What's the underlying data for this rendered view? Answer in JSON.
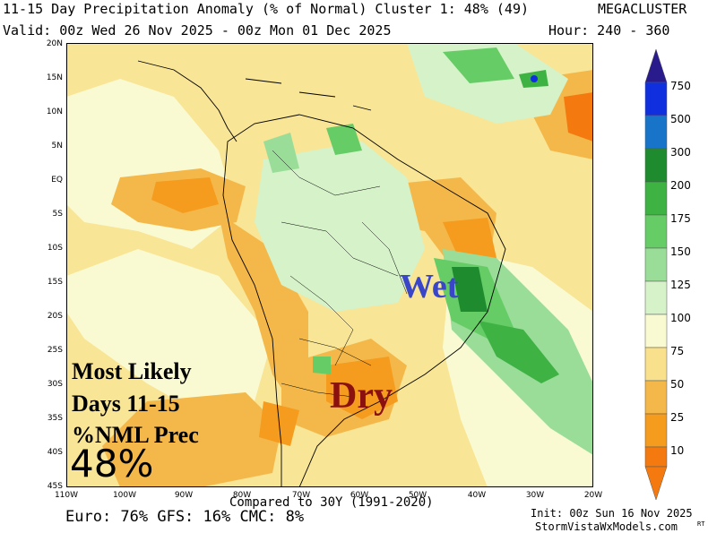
{
  "header": {
    "title": "11-15 Day Precipitation Anomaly (% of Normal) Cluster 1: 48% (49)",
    "brand": "MEGACLUSTER",
    "valid": "Valid: 00z Wed 26 Nov 2025 - 00z Mon 01 Dec 2025",
    "hour": "Hour: 240 - 360"
  },
  "axes": {
    "lat": [
      "20N",
      "15N",
      "10N",
      "5N",
      "EQ",
      "5S",
      "10S",
      "15S",
      "20S",
      "25S",
      "30S",
      "35S",
      "40S",
      "45S"
    ],
    "lon": [
      "110W",
      "100W",
      "90W",
      "80W",
      "70W",
      "60W",
      "50W",
      "40W",
      "30W",
      "20W"
    ]
  },
  "colorbar": {
    "labels": [
      "750",
      "500",
      "300",
      "200",
      "175",
      "150",
      "125",
      "100",
      "75",
      "50",
      "25",
      "10"
    ],
    "colors": [
      "#2a1b8c",
      "#1030e0",
      "#1874c8",
      "#1e8c2e",
      "#3fb244",
      "#66cc66",
      "#99dd99",
      "#d6f2c8",
      "#fafad2",
      "#f8e08c",
      "#f4b84a",
      "#f59b1e",
      "#f47a10"
    ]
  },
  "labels": {
    "wet": "Wet",
    "dry": "Dry",
    "likely_1": "Most Likely",
    "likely_2": "Days 11-15",
    "likely_3": "%NML Prec",
    "pct": "48%"
  },
  "footer": {
    "compared": "Compared to 30Y (1991-2020)",
    "models": "Euro: 76% GFS: 16% CMC: 8%",
    "init": "Init: 00z Sun 16 Nov 2025",
    "site": "StormVistaWxModels.com",
    "mark": "RT"
  }
}
